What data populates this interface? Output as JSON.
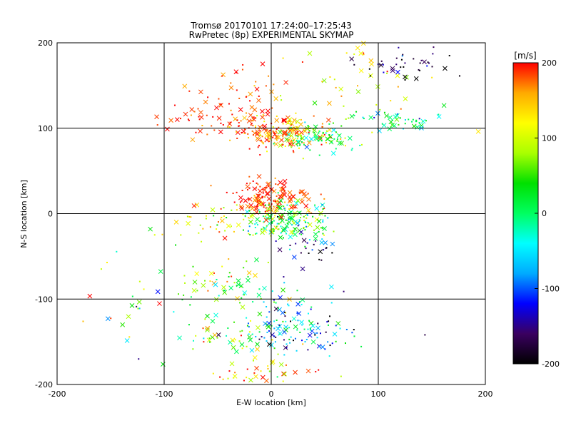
{
  "chart_data": {
    "type": "scatter",
    "title": "Tromsø 20170101 17:24:00–17:25:43",
    "subtitle": "RwPretec (8p) EXPERIMENTAL SKYMAP",
    "xlabel": "E-W location [km]",
    "ylabel": "N-S location [km]",
    "xlim": [
      -200,
      200
    ],
    "ylim": [
      -200,
      200
    ],
    "xticks": [
      "-200",
      "-100",
      "0",
      "100",
      "200"
    ],
    "yticks": [
      "-200",
      "-100",
      "0",
      "100",
      "200"
    ],
    "grid": true,
    "colorbar": {
      "label": "[m/s]",
      "range": [
        -200,
        200
      ],
      "ticks": [
        "200",
        "100",
        "0",
        "-100",
        "-200"
      ],
      "colormap": [
        "#000000",
        "#3a0060",
        "#0000ff",
        "#00aaff",
        "#00ffff",
        "#00ff60",
        "#00e000",
        "#aaff00",
        "#ffff00",
        "#ffaa00",
        "#ff0000"
      ]
    },
    "markers": [
      "dot",
      "x"
    ],
    "clusters": [
      {
        "x": 5,
        "y": 95,
        "sx": 20,
        "sy": 10,
        "v": 175,
        "sv": 30,
        "n": 160
      },
      {
        "x": 40,
        "y": 90,
        "sx": 20,
        "sy": 9,
        "v": 50,
        "sv": 60,
        "n": 110
      },
      {
        "x": -50,
        "y": 115,
        "sx": 25,
        "sy": 12,
        "v": 185,
        "sv": 20,
        "n": 60
      },
      {
        "x": -20,
        "y": 150,
        "sx": 25,
        "sy": 30,
        "v": 180,
        "sv": 20,
        "n": 35
      },
      {
        "x": 80,
        "y": 150,
        "sx": 35,
        "sy": 30,
        "v": 110,
        "sv": 40,
        "n": 45
      },
      {
        "x": 125,
        "y": 175,
        "sx": 20,
        "sy": 10,
        "v": -170,
        "sv": 40,
        "n": 40
      },
      {
        "x": 120,
        "y": 110,
        "sx": 20,
        "sy": 8,
        "v": -20,
        "sv": 50,
        "n": 45
      },
      {
        "x": 0,
        "y": 18,
        "sx": 18,
        "sy": 10,
        "v": 185,
        "sv": 20,
        "n": 150
      },
      {
        "x": 15,
        "y": -10,
        "sx": 20,
        "sy": 12,
        "v": 20,
        "sv": 60,
        "n": 170
      },
      {
        "x": -40,
        "y": -10,
        "sx": 30,
        "sy": 12,
        "v": 110,
        "sv": 50,
        "n": 60
      },
      {
        "x": 40,
        "y": -40,
        "sx": 15,
        "sy": 10,
        "v": -160,
        "sv": 50,
        "n": 25
      },
      {
        "x": -40,
        "y": -80,
        "sx": 25,
        "sy": 15,
        "v": 60,
        "sv": 60,
        "n": 60
      },
      {
        "x": 10,
        "y": -115,
        "sx": 25,
        "sy": 15,
        "v": -50,
        "sv": 70,
        "n": 60
      },
      {
        "x": 30,
        "y": -145,
        "sx": 30,
        "sy": 12,
        "v": -80,
        "sv": 80,
        "n": 80
      },
      {
        "x": -35,
        "y": -145,
        "sx": 25,
        "sy": 12,
        "v": 60,
        "sv": 80,
        "n": 50
      },
      {
        "x": -10,
        "y": -185,
        "sx": 25,
        "sy": 10,
        "v": 150,
        "sv": 60,
        "n": 35
      },
      {
        "x": -130,
        "y": -120,
        "sx": 30,
        "sy": 30,
        "v": 20,
        "sv": 120,
        "n": 25
      }
    ]
  }
}
